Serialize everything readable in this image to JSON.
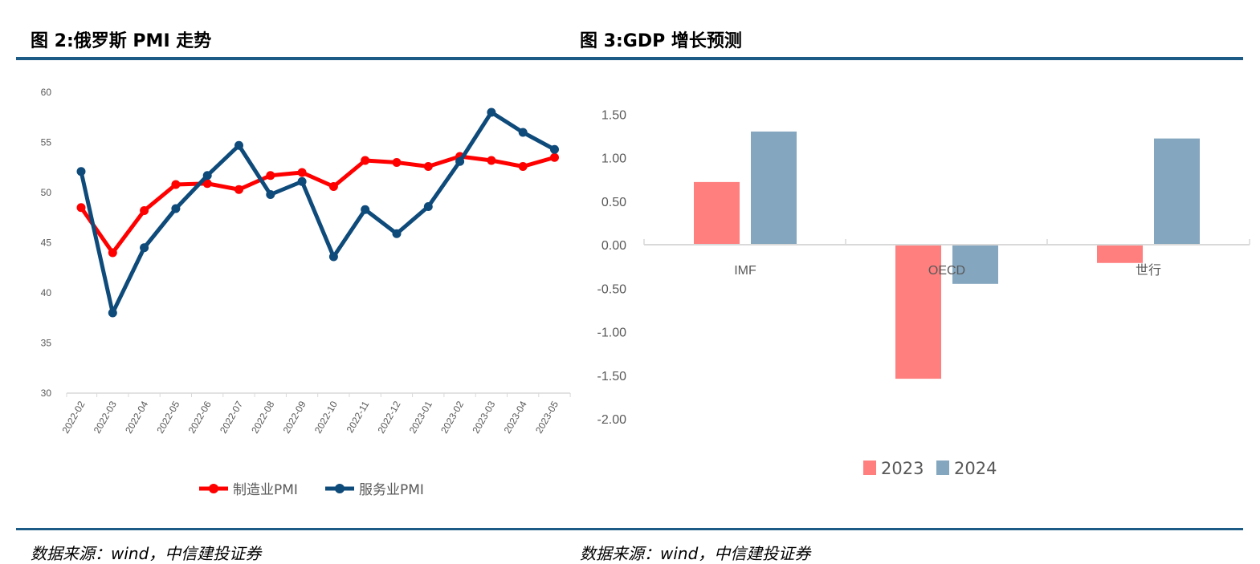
{
  "left": {
    "title": "图 2:俄罗斯 PMI 走势",
    "source": "数据来源：wind，中信建投证券"
  },
  "right": {
    "title": "图 3:GDP 增长预测",
    "source": "数据来源：wind，中信建投证券"
  },
  "chart_data": [
    {
      "type": "line",
      "title": "图 2:俄罗斯 PMI 走势",
      "categories": [
        "2022-02",
        "2022-03",
        "2022-04",
        "2022-05",
        "2022-06",
        "2022-07",
        "2022-08",
        "2022-09",
        "2022-10",
        "2022-11",
        "2022-12",
        "2023-01",
        "2023-02",
        "2023-03",
        "2023-04",
        "2023-05"
      ],
      "series": [
        {
          "name": "制造业PMI",
          "color": "#ff0000",
          "values": [
            48.5,
            44.0,
            48.2,
            50.8,
            50.9,
            50.3,
            51.7,
            52.0,
            50.6,
            53.2,
            53.0,
            52.6,
            53.6,
            53.2,
            52.6,
            53.5
          ]
        },
        {
          "name": "服务业PMI",
          "color": "#0e4a7a",
          "values": [
            52.1,
            38.0,
            44.5,
            48.4,
            51.7,
            54.7,
            49.8,
            51.1,
            43.6,
            48.3,
            45.9,
            48.6,
            53.1,
            58.0,
            56.0,
            54.3
          ]
        }
      ],
      "yticks": [
        "30",
        "35",
        "40",
        "45",
        "50",
        "55",
        "60"
      ],
      "ylim": [
        30,
        60
      ],
      "legend": "bottom"
    },
    {
      "type": "bar",
      "title": "图 3:GDP 增长预测",
      "categories": [
        "IMF",
        "OECD",
        "世行"
      ],
      "series": [
        {
          "name": "2023",
          "color": "#ff7f7f",
          "values": [
            0.72,
            -1.54,
            -0.21
          ]
        },
        {
          "name": "2024",
          "color": "#84a6be",
          "values": [
            1.3,
            -0.45,
            1.22
          ]
        }
      ],
      "yticks": [
        "1.50",
        "1.00",
        "0.50",
        "0.00",
        "-0.50",
        "-1.00",
        "-1.50",
        "-2.00"
      ],
      "ylim": [
        -2.0,
        1.5
      ],
      "legend": "bottom"
    }
  ]
}
